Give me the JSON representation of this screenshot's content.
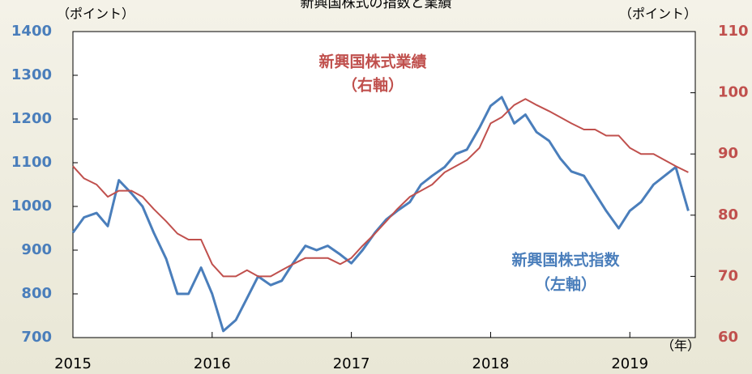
{
  "chart_data": {
    "type": "line",
    "title": "新興国株式の指数と業績",
    "y_label": "（ポイント）",
    "y2_label": "（ポイント）",
    "x_label": "（年）",
    "xlim": [
      2015,
      2019.47
    ],
    "xticks": [
      2015,
      2016,
      2017,
      2018,
      2019
    ],
    "ylim": [
      700,
      1400
    ],
    "yticks": [
      700,
      800,
      900,
      1000,
      1100,
      1200,
      1300,
      1400
    ],
    "y2lim": [
      60,
      110
    ],
    "y2ticks": [
      60,
      70,
      80,
      90,
      100,
      110
    ],
    "x": [
      2015,
      2015.08,
      2015.17,
      2015.25,
      2015.33,
      2015.42,
      2015.5,
      2015.58,
      2015.67,
      2015.75,
      2015.83,
      2015.92,
      2016,
      2016.08,
      2016.17,
      2016.25,
      2016.33,
      2016.42,
      2016.5,
      2016.58,
      2016.67,
      2016.75,
      2016.83,
      2016.92,
      2017,
      2017.08,
      2017.17,
      2017.25,
      2017.33,
      2017.42,
      2017.5,
      2017.58,
      2017.67,
      2017.75,
      2017.83,
      2017.92,
      2018,
      2018.08,
      2018.17,
      2018.25,
      2018.33,
      2018.42,
      2018.5,
      2018.58,
      2018.67,
      2018.75,
      2018.83,
      2018.92,
      2019,
      2019.08,
      2019.17,
      2019.25,
      2019.33,
      2019.42
    ],
    "series": [
      {
        "name": "新興国株式指数",
        "color": "#4a7ebb",
        "axis": "y",
        "values": [
          940,
          975,
          985,
          955,
          1060,
          1030,
          1000,
          940,
          880,
          800,
          800,
          860,
          800,
          715,
          740,
          790,
          840,
          820,
          830,
          870,
          910,
          900,
          910,
          890,
          870,
          900,
          940,
          970,
          990,
          1010,
          1050,
          1070,
          1090,
          1120,
          1130,
          1180,
          1230,
          1250,
          1190,
          1210,
          1170,
          1150,
          1110,
          1080,
          1070,
          1030,
          990,
          950,
          990,
          1010,
          1050,
          1070,
          1090,
          990
        ]
      },
      {
        "name": "新興国株式業績",
        "color": "#c0504d",
        "axis": "y2",
        "values": [
          88,
          86,
          85,
          83,
          84,
          84,
          83,
          81,
          79,
          77,
          76,
          76,
          72,
          70,
          70,
          71,
          70,
          70,
          71,
          72,
          73,
          73,
          73,
          72,
          73,
          75,
          77,
          79,
          81,
          83,
          84,
          85,
          87,
          88,
          89,
          91,
          95,
          96,
          98,
          99,
          98,
          97,
          96,
          95,
          94,
          94,
          93,
          93,
          91,
          90,
          90,
          89,
          88,
          87
        ]
      }
    ],
    "annotations": [
      "（左軸）",
      "（右軸）"
    ]
  }
}
